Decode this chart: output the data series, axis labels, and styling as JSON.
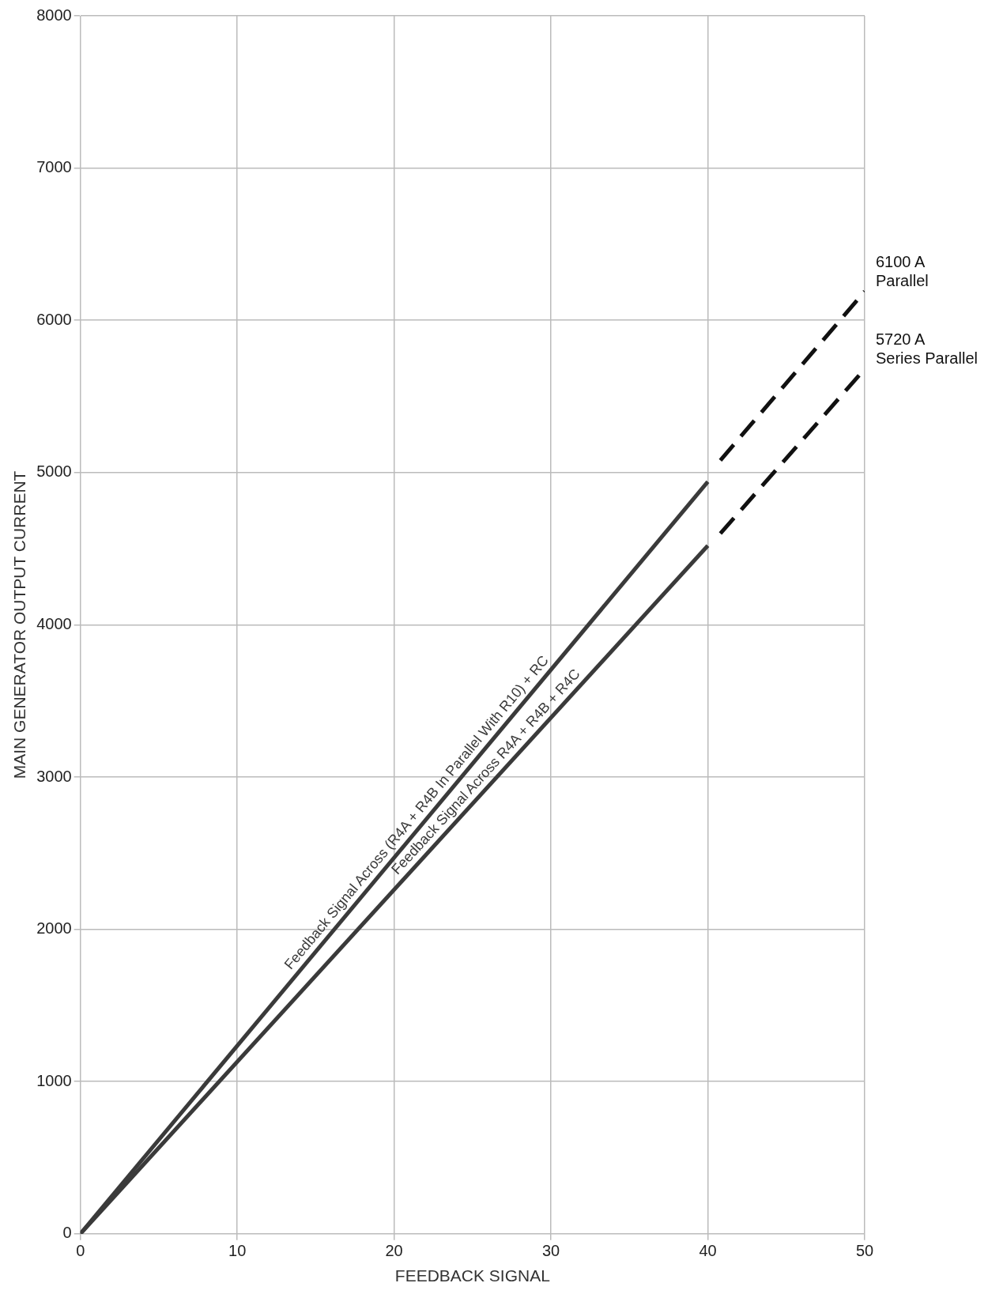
{
  "chart_data": {
    "type": "line",
    "xlabel": "FEEDBACK SIGNAL",
    "ylabel": "MAIN GENERATOR OUTPUT CURRENT",
    "xlim": [
      0,
      50
    ],
    "xticks": [
      0,
      10,
      20,
      30,
      40,
      50
    ],
    "ylim": [
      0,
      8000
    ],
    "yticks": [
      0,
      1000,
      2000,
      3000,
      4000,
      5000,
      6000,
      7000,
      8000
    ],
    "grid": true,
    "legend": false,
    "marker": "none",
    "series": [
      {
        "name": "Feedback Signal Across (R4A + R4B In Parallel With R10) + RC",
        "color": "#3a3a3a",
        "x": [
          0,
          40
        ],
        "values": [
          0,
          4940
        ],
        "line_style": "solid"
      },
      {
        "name": "Feedback Signal Across R4A + R4B + R4C",
        "color": "#3a3a3a",
        "x": [
          0,
          40
        ],
        "values": [
          0,
          4520
        ],
        "line_style": "solid"
      },
      {
        "color": "#111111",
        "x": [
          40.8,
          50
        ],
        "values": [
          5080,
          6190
        ],
        "line_style": "dashed"
      },
      {
        "color": "#111111",
        "x": [
          40.8,
          50
        ],
        "values": [
          4600,
          5680
        ],
        "line_style": "dashed"
      }
    ],
    "annotations": [
      {
        "text": "6100 A\nParallel",
        "x": 50,
        "y": 6190
      },
      {
        "text": "5720 A\nSeries Parallel",
        "x": 50,
        "y": 5680
      }
    ]
  }
}
